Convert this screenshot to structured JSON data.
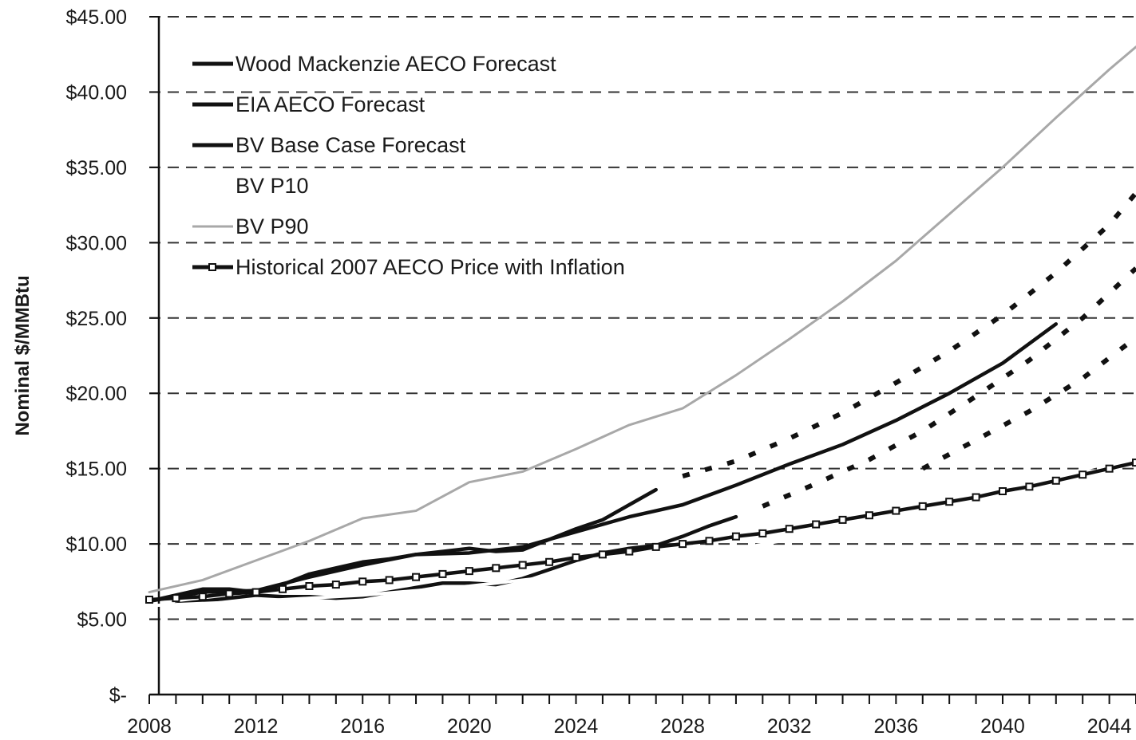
{
  "chart_data": {
    "type": "line",
    "title": "",
    "xlabel": "",
    "ylabel": "Nominal $/MMBtu",
    "xlim": [
      2008,
      2045
    ],
    "ylim": [
      0,
      45
    ],
    "x_ticks": [
      2008,
      2012,
      2016,
      2020,
      2024,
      2028,
      2032,
      2036,
      2040,
      2044
    ],
    "y_ticks": [
      {
        "value": 0,
        "label": "$-"
      },
      {
        "value": 5,
        "label": "$5.00"
      },
      {
        "value": 10,
        "label": "$10.00"
      },
      {
        "value": 15,
        "label": "$15.00"
      },
      {
        "value": 20,
        "label": "$20.00"
      },
      {
        "value": 25,
        "label": "$25.00"
      },
      {
        "value": 30,
        "label": "$30.00"
      },
      {
        "value": 35,
        "label": "$35.00"
      },
      {
        "value": 40,
        "label": "$40.00"
      },
      {
        "value": 45,
        "label": "$45.00"
      }
    ],
    "grid": "dashed horizontal",
    "legend_position": "top-left",
    "series": [
      {
        "name": "Wood Mackenzie AECO Forecast",
        "color": "#111111",
        "style": "solid",
        "x": [
          2008,
          2009,
          2010,
          2011,
          2012,
          2013,
          2014,
          2015,
          2016,
          2017,
          2018,
          2019,
          2020,
          2021,
          2022,
          2023,
          2024,
          2025,
          2026,
          2027
        ],
        "y": [
          6.2,
          6.6,
          7.0,
          7.0,
          6.8,
          7.3,
          8.0,
          8.4,
          8.8,
          9.0,
          9.3,
          9.5,
          9.7,
          9.5,
          9.6,
          10.3,
          11.0,
          11.6,
          12.6,
          13.6
        ]
      },
      {
        "name": "EIA AECO Forecast",
        "color": "#111111",
        "style": "solid",
        "x": [
          2009,
          2010,
          2011,
          2012,
          2013,
          2014,
          2015,
          2016,
          2017,
          2018,
          2019,
          2020,
          2021,
          2022,
          2023,
          2024,
          2025,
          2026,
          2027,
          2028,
          2029,
          2030
        ],
        "y": [
          6.0,
          6.2,
          6.4,
          6.6,
          6.5,
          6.5,
          6.4,
          6.5,
          6.8,
          7.1,
          7.4,
          7.4,
          7.3,
          7.7,
          8.3,
          8.9,
          9.4,
          9.7,
          9.9,
          10.5,
          11.2,
          11.8
        ]
      },
      {
        "name": "BV Base Case Forecast",
        "color": "#111111",
        "style": "solid",
        "x": [
          2008,
          2010,
          2012,
          2014,
          2016,
          2018,
          2020,
          2022,
          2024,
          2026,
          2028,
          2030,
          2032,
          2034,
          2036,
          2038,
          2040,
          2042
        ],
        "y": [
          6.2,
          6.8,
          6.9,
          7.8,
          8.6,
          9.3,
          9.4,
          9.8,
          10.8,
          11.8,
          12.6,
          13.9,
          15.3,
          16.6,
          18.2,
          20.0,
          22.0,
          24.6
        ]
      },
      {
        "name": "BV P10",
        "color": "#ffffff",
        "style": "solid",
        "x": [
          2008,
          2012,
          2016,
          2020,
          2024,
          2028,
          2032,
          2036,
          2040,
          2044
        ],
        "y": [
          5.9,
          6.2,
          6.6,
          7.2,
          8.0,
          9.0,
          10.3,
          11.8,
          13.5,
          15.4
        ]
      },
      {
        "name": "BV P90",
        "color": "#a8a8a8",
        "style": "solid",
        "x": [
          2008,
          2010,
          2012,
          2014,
          2016,
          2018,
          2020,
          2022,
          2024,
          2026,
          2028,
          2030,
          2032,
          2034,
          2036,
          2038,
          2040,
          2042,
          2044,
          2045
        ],
        "y": [
          6.8,
          7.6,
          8.9,
          10.2,
          11.7,
          12.2,
          14.1,
          14.8,
          16.3,
          17.9,
          19.0,
          21.2,
          23.6,
          26.1,
          28.8,
          31.9,
          35.0,
          38.3,
          41.5,
          43.0
        ]
      },
      {
        "name": "Historical 2007 AECO Price with Inflation",
        "color": "#111111",
        "style": "solid-markers",
        "marker": "hollow-square",
        "x": [
          2008,
          2009,
          2010,
          2011,
          2012,
          2013,
          2014,
          2015,
          2016,
          2017,
          2018,
          2019,
          2020,
          2021,
          2022,
          2023,
          2024,
          2025,
          2026,
          2027,
          2028,
          2029,
          2030,
          2031,
          2032,
          2033,
          2034,
          2035,
          2036,
          2037,
          2038,
          2039,
          2040,
          2041,
          2042,
          2043,
          2044,
          2045
        ],
        "y": [
          6.3,
          6.4,
          6.5,
          6.7,
          6.8,
          7.0,
          7.2,
          7.3,
          7.5,
          7.6,
          7.8,
          8.0,
          8.2,
          8.4,
          8.6,
          8.8,
          9.1,
          9.3,
          9.5,
          9.8,
          10.0,
          10.2,
          10.5,
          10.7,
          11.0,
          11.3,
          11.6,
          11.9,
          12.2,
          12.5,
          12.8,
          13.1,
          13.5,
          13.8,
          14.2,
          14.6,
          15.0,
          15.4
        ]
      },
      {
        "color": "#111111",
        "style": "dotted",
        "x": [
          2028,
          2030,
          2032,
          2034,
          2036,
          2038,
          2040,
          2042,
          2044,
          2045
        ],
        "y": [
          14.5,
          15.5,
          17.0,
          18.7,
          20.7,
          22.8,
          25.2,
          28.0,
          31.2,
          33.3
        ]
      },
      {
        "color": "#111111",
        "style": "dotted",
        "x": [
          2031,
          2033,
          2035,
          2037,
          2039,
          2041,
          2043,
          2045
        ],
        "y": [
          12.5,
          14.0,
          15.6,
          17.5,
          19.8,
          22.2,
          25.0,
          28.3
        ]
      },
      {
        "color": "#111111",
        "style": "dotted",
        "x": [
          2037,
          2039,
          2041,
          2043,
          2045
        ],
        "y": [
          15.0,
          16.9,
          18.8,
          21.0,
          23.7
        ]
      }
    ]
  }
}
